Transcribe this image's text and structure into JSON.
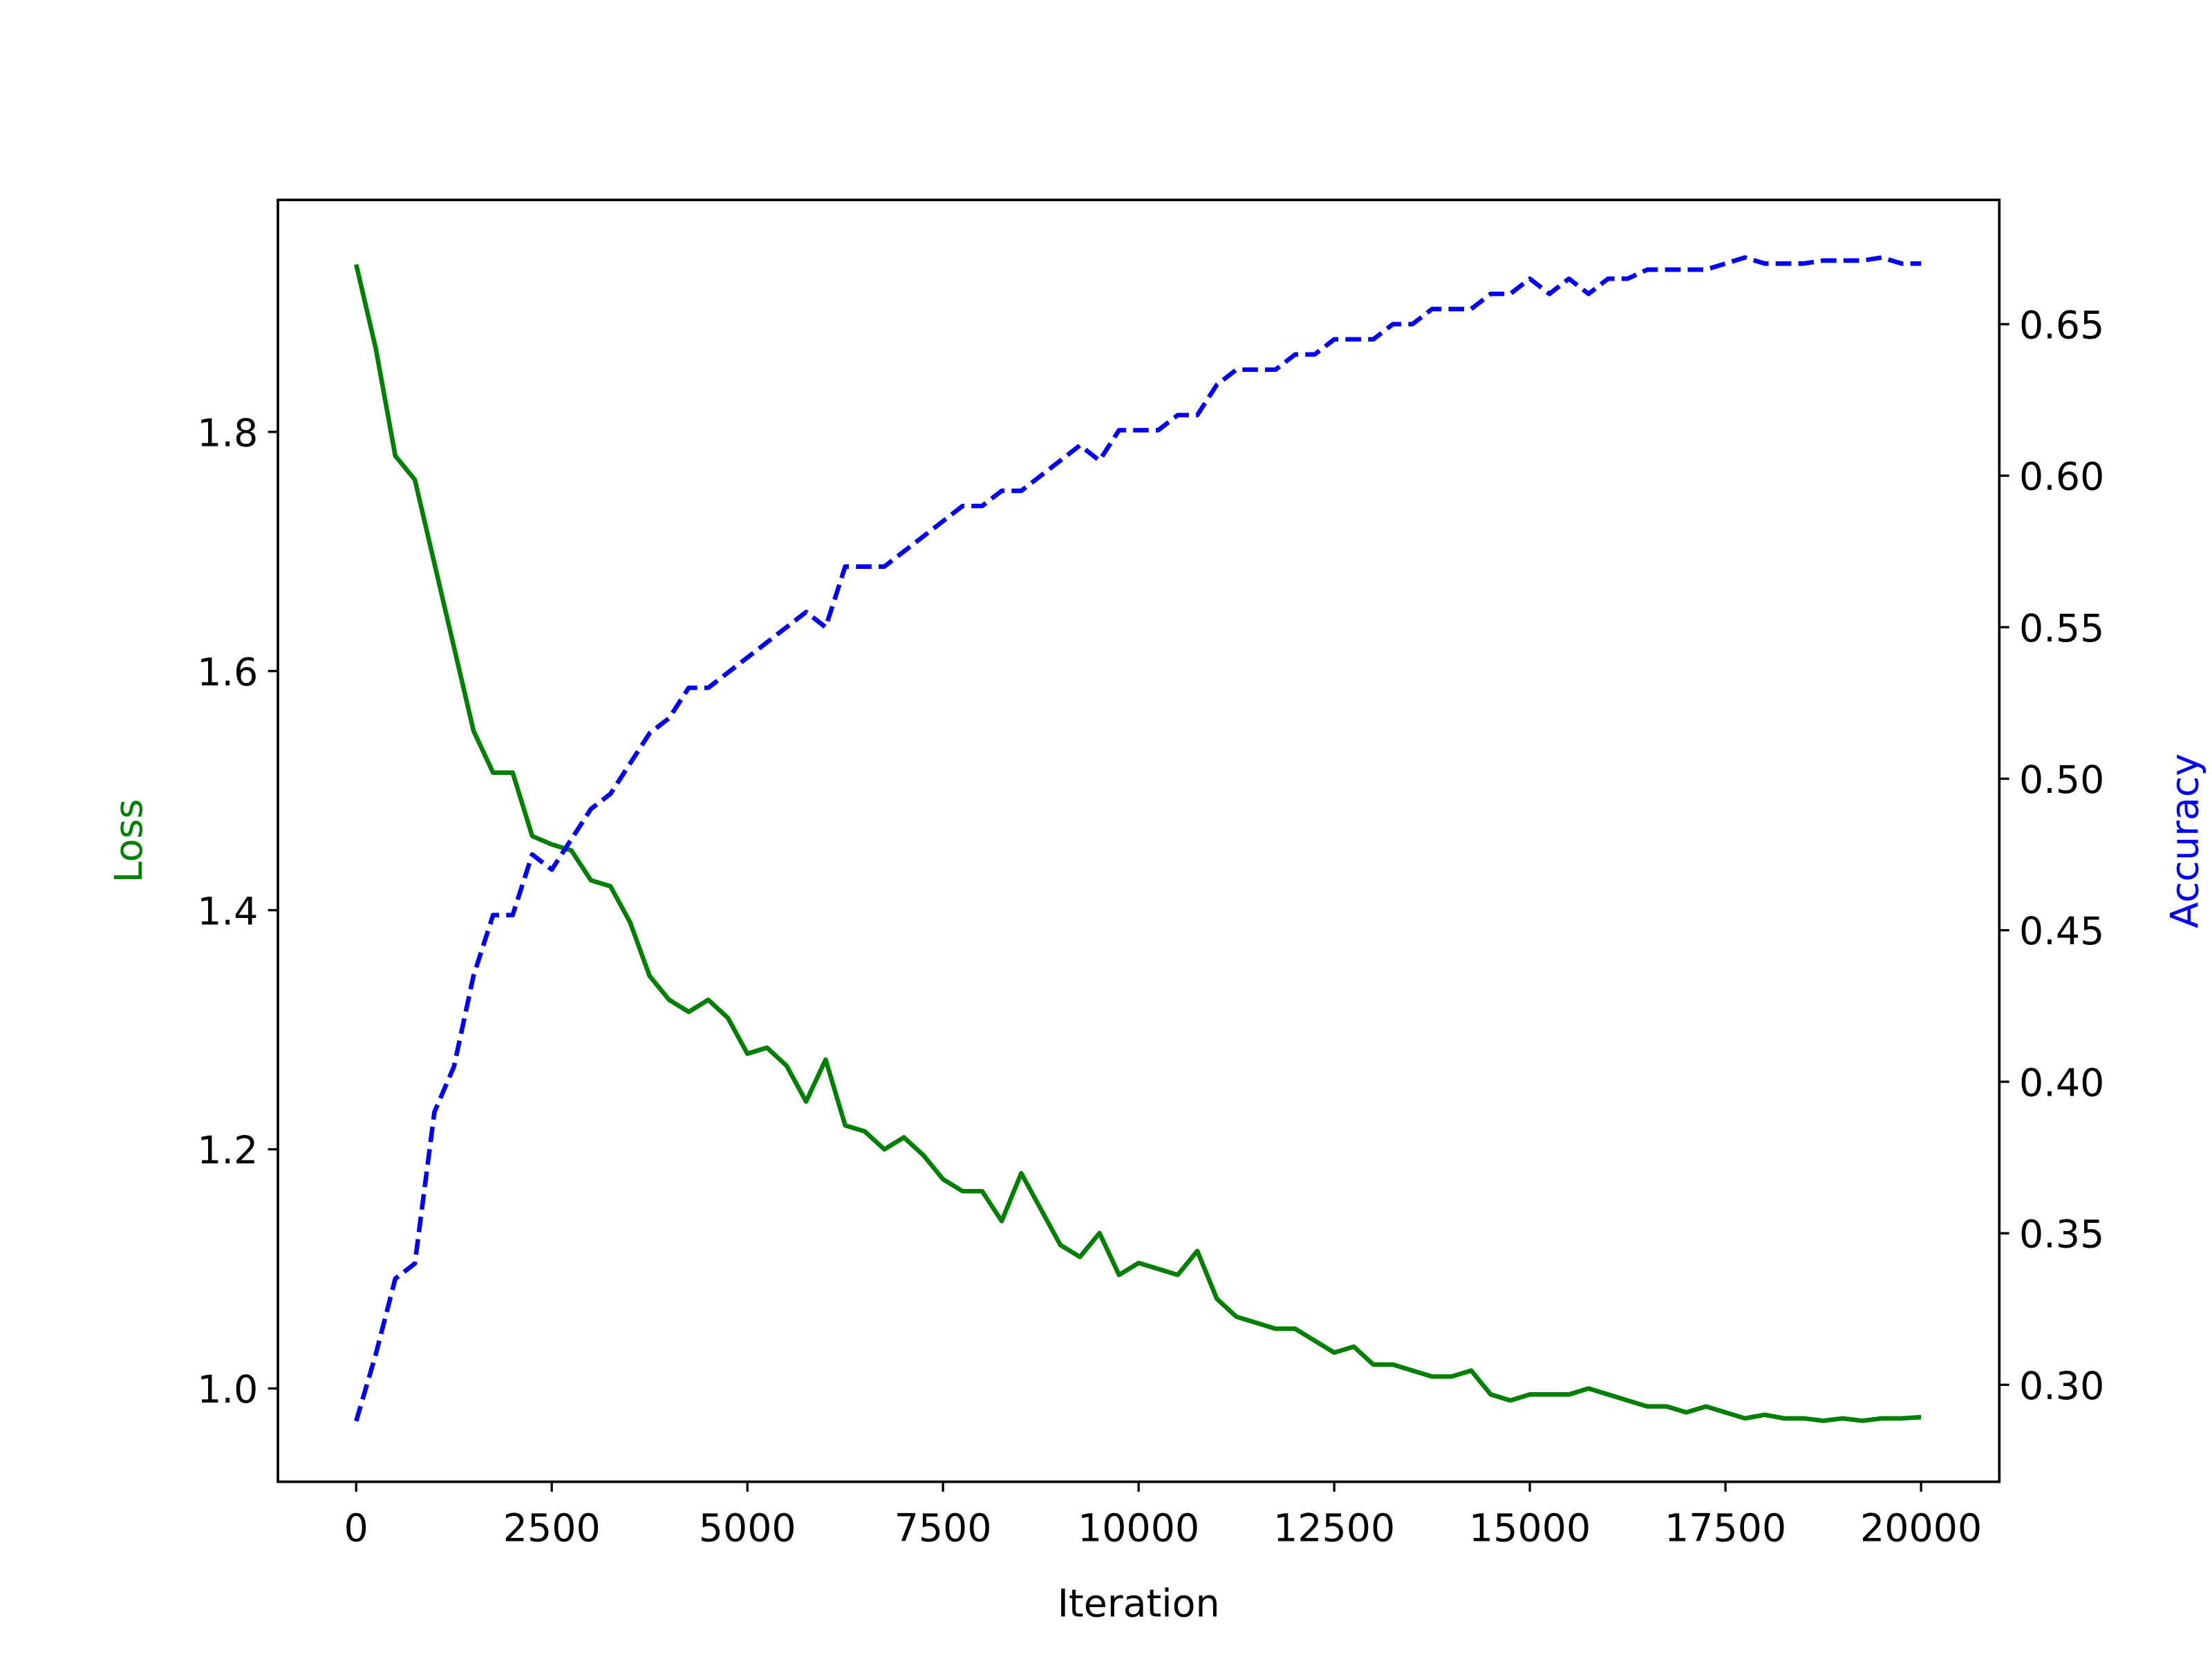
{
  "chart_data": {
    "type": "line",
    "xlabel": "Iteration",
    "ylabel": "Loss",
    "y2label": "Accuracy",
    "ylabel_color": "#008000",
    "y2label_color": "#0000ff",
    "x": [
      0,
      250,
      500,
      750,
      1000,
      1250,
      1500,
      1750,
      2000,
      2250,
      2500,
      2750,
      3000,
      3250,
      3500,
      3750,
      4000,
      4250,
      4500,
      4750,
      5000,
      5250,
      5500,
      5750,
      6000,
      6250,
      6500,
      6750,
      7000,
      7250,
      7500,
      7750,
      8000,
      8250,
      8500,
      8750,
      9000,
      9250,
      9500,
      9750,
      10000,
      10250,
      10500,
      10750,
      11000,
      11250,
      11500,
      11750,
      12000,
      12250,
      12500,
      12750,
      13000,
      13250,
      13500,
      13750,
      14000,
      14250,
      14500,
      14750,
      15000,
      15250,
      15500,
      15750,
      16000,
      16250,
      16500,
      16750,
      17000,
      17250,
      17500,
      17750,
      18000,
      18250,
      18500,
      18750,
      19000,
      19250,
      19500,
      19750,
      20000
    ],
    "series": [
      {
        "name": "Loss",
        "color": "#008000",
        "linestyle": "solid",
        "axis": "y",
        "values": [
          1.94,
          1.87,
          1.78,
          1.76,
          1.69,
          1.62,
          1.55,
          1.515,
          1.515,
          1.462,
          1.455,
          1.45,
          1.425,
          1.42,
          1.39,
          1.345,
          1.325,
          1.315,
          1.325,
          1.31,
          1.28,
          1.285,
          1.27,
          1.24,
          1.275,
          1.22,
          1.215,
          1.2,
          1.21,
          1.195,
          1.175,
          1.165,
          1.165,
          1.14,
          1.18,
          1.15,
          1.12,
          1.11,
          1.13,
          1.095,
          1.105,
          1.1,
          1.095,
          1.115,
          1.075,
          1.06,
          1.055,
          1.05,
          1.05,
          1.04,
          1.03,
          1.035,
          1.02,
          1.02,
          1.015,
          1.01,
          1.01,
          1.015,
          0.995,
          0.99,
          0.995,
          0.995,
          0.995,
          1.0,
          0.995,
          0.99,
          0.985,
          0.985,
          0.98,
          0.985,
          0.98,
          0.975,
          0.978,
          0.975,
          0.975,
          0.973,
          0.975,
          0.973,
          0.975,
          0.975,
          0.976
        ]
      },
      {
        "name": "Accuracy",
        "color": "#0000ff",
        "linestyle": "dashed",
        "axis": "y2",
        "values": [
          0.288,
          0.31,
          0.335,
          0.34,
          0.39,
          0.405,
          0.435,
          0.455,
          0.455,
          0.475,
          0.47,
          0.48,
          0.49,
          0.495,
          0.505,
          0.515,
          0.52,
          0.53,
          0.53,
          0.535,
          0.54,
          0.545,
          0.55,
          0.555,
          0.55,
          0.57,
          0.57,
          0.57,
          0.575,
          0.58,
          0.585,
          0.59,
          0.59,
          0.595,
          0.595,
          0.6,
          0.605,
          0.61,
          0.605,
          0.615,
          0.615,
          0.615,
          0.62,
          0.62,
          0.63,
          0.635,
          0.635,
          0.635,
          0.64,
          0.64,
          0.645,
          0.645,
          0.645,
          0.65,
          0.65,
          0.655,
          0.655,
          0.655,
          0.66,
          0.66,
          0.665,
          0.66,
          0.665,
          0.66,
          0.665,
          0.665,
          0.668,
          0.668,
          0.668,
          0.668,
          0.67,
          0.672,
          0.67,
          0.67,
          0.67,
          0.671,
          0.671,
          0.671,
          0.672,
          0.67,
          0.67
        ]
      }
    ],
    "xlim": [
      -1000,
      21000
    ],
    "xticks": [
      0,
      2500,
      5000,
      7500,
      10000,
      12500,
      15000,
      17500,
      20000
    ],
    "ylim": [
      0.922,
      1.994
    ],
    "yticks": [
      {
        "value": 1,
        "label": "1.0"
      },
      1.2,
      1.4,
      1.6,
      1.8
    ],
    "y2lim": [
      0.268,
      0.691
    ],
    "y2ticks": [
      {
        "value": 0.3,
        "label": "0.30"
      },
      0.35,
      {
        "value": 0.4,
        "label": "0.40"
      },
      0.45,
      {
        "value": 0.5,
        "label": "0.50"
      },
      0.55,
      {
        "value": 0.6,
        "label": "0.60"
      },
      0.65
    ],
    "grid": false
  }
}
